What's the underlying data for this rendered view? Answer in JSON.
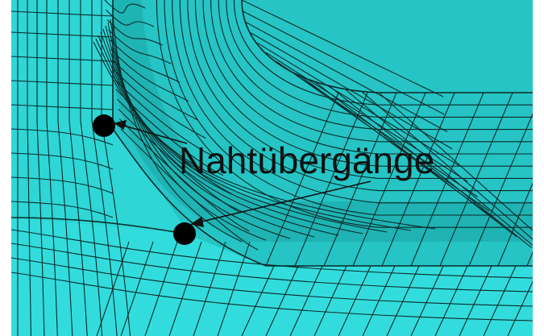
{
  "figure": {
    "label": "Nahtübergänge",
    "colors": {
      "background": "#ffffff",
      "mesh_light": "#2fd6d6",
      "mesh_mid": "#26c4c4",
      "mesh_dark": "#1a9f9f",
      "mesh_line": "#0b2a2a",
      "marker": "#000000",
      "label": "#111111"
    },
    "markers": [
      {
        "name": "upper-weld-toe"
      },
      {
        "name": "lower-weld-toe"
      }
    ]
  }
}
